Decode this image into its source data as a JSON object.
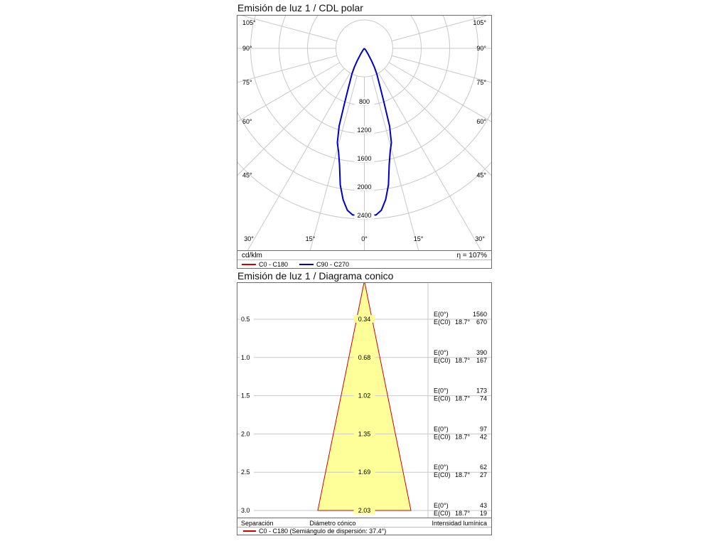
{
  "page": {
    "background": "#ffffff"
  },
  "polar": {
    "title": "Emisión de luz 1 / CDL polar",
    "unit_label": "cd/klm",
    "efficiency_label": "η = 107%",
    "legend": [
      {
        "label": "C0 - C180",
        "color": "#d40000"
      },
      {
        "label": "C90 - C270",
        "color": "#0000cd"
      }
    ],
    "grid_color": "#c8c8c8",
    "ray_angles": [
      0,
      15,
      30,
      45,
      60,
      75,
      90,
      105
    ],
    "rings": [
      400,
      800,
      1200,
      1600,
      2000,
      2400
    ],
    "labeled_rings": [
      800,
      1200,
      1600,
      2000,
      2400
    ]
  },
  "cone": {
    "title": "Emisión de luz 1 / Diagrama conico",
    "fill_color": "#ffff99",
    "outline_color": "#d40000",
    "grid_color": "#c8c8c8",
    "rows": [
      {
        "separation": "0.5",
        "diameter": "0.34",
        "e0_label": "E(0°)",
        "e0": "1560",
        "ec0_label": "E(C0)",
        "angle": "18.7°",
        "ec0": "670"
      },
      {
        "separation": "1.0",
        "diameter": "0.68",
        "e0_label": "E(0°)",
        "e0": "390",
        "ec0_label": "E(C0)",
        "angle": "18.7°",
        "ec0": "167"
      },
      {
        "separation": "1.5",
        "diameter": "1.02",
        "e0_label": "E(0°)",
        "e0": "173",
        "ec0_label": "E(C0)",
        "angle": "18.7°",
        "ec0": "74"
      },
      {
        "separation": "2.0",
        "diameter": "1.35",
        "e0_label": "E(0°)",
        "e0": "97",
        "ec0_label": "E(C0)",
        "angle": "18.7°",
        "ec0": "42"
      },
      {
        "separation": "2.5",
        "diameter": "1.69",
        "e0_label": "E(0°)",
        "e0": "62",
        "ec0_label": "E(C0)",
        "angle": "18.7°",
        "ec0": "27"
      },
      {
        "separation": "3.0",
        "diameter": "2.03",
        "e0_label": "E(0°)",
        "e0": "43",
        "ec0_label": "E(C0)",
        "angle": "18.7°",
        "ec0": "19"
      }
    ],
    "footer": {
      "separation": "Separación",
      "diameter": "Diámetro cónico",
      "intensity": "Intensidad lumínica"
    },
    "legend_label": "C0 - C180 (Semiángulo de dispersión: 37.4°)",
    "legend_color": "#d40000"
  },
  "chart_data": [
    {
      "type": "line",
      "variant": "polar-intensity-curve",
      "title": "Emisión de luz 1 / CDL polar",
      "radial_unit": "cd/klm",
      "radial_ticks": [
        800,
        1200,
        1600,
        2000,
        2400
      ],
      "angle_ticks_deg": [
        0,
        15,
        30,
        45,
        60,
        75,
        90,
        105
      ],
      "efficiency": "η = 107%",
      "series": [
        {
          "name": "C0 - C180",
          "color": "#d40000",
          "points_deg_cd": [
            [
              0,
              2310
            ],
            [
              2,
              2345
            ],
            [
              4,
              2350
            ],
            [
              6,
              2290
            ],
            [
              8,
              2150
            ],
            [
              10,
              1950
            ],
            [
              12,
              1680
            ],
            [
              14,
              1500
            ],
            [
              16,
              1380
            ],
            [
              18,
              1150
            ],
            [
              20,
              800
            ],
            [
              22,
              600
            ],
            [
              24,
              480
            ],
            [
              26,
              400
            ],
            [
              28,
              300
            ],
            [
              30,
              200
            ],
            [
              33,
              100
            ],
            [
              36,
              40
            ],
            [
              40,
              10
            ],
            [
              45,
              0
            ]
          ]
        },
        {
          "name": "C90 - C270",
          "color": "#0000cd",
          "points_deg_cd": [
            [
              0,
              2310
            ],
            [
              2,
              2345
            ],
            [
              4,
              2350
            ],
            [
              6,
              2290
            ],
            [
              8,
              2150
            ],
            [
              10,
              1950
            ],
            [
              12,
              1680
            ],
            [
              14,
              1500
            ],
            [
              16,
              1380
            ],
            [
              18,
              1150
            ],
            [
              20,
              800
            ],
            [
              22,
              600
            ],
            [
              24,
              480
            ],
            [
              26,
              400
            ],
            [
              28,
              300
            ],
            [
              30,
              200
            ],
            [
              33,
              100
            ],
            [
              36,
              40
            ],
            [
              40,
              10
            ],
            [
              45,
              0
            ]
          ]
        }
      ]
    },
    {
      "type": "table",
      "variant": "cone-diagram",
      "title": "Emisión de luz 1 / Diagrama conico",
      "columns": [
        "Separación",
        "Diámetro cónico",
        "E(0°)",
        "E(C0) 18.7°"
      ],
      "rows": [
        [
          0.5,
          0.34,
          1560,
          670
        ],
        [
          1.0,
          0.68,
          390,
          167
        ],
        [
          1.5,
          1.02,
          173,
          74
        ],
        [
          2.0,
          1.35,
          97,
          42
        ],
        [
          2.5,
          1.69,
          62,
          27
        ],
        [
          3.0,
          2.03,
          43,
          19
        ]
      ],
      "semi_angle": "37.4°"
    }
  ]
}
